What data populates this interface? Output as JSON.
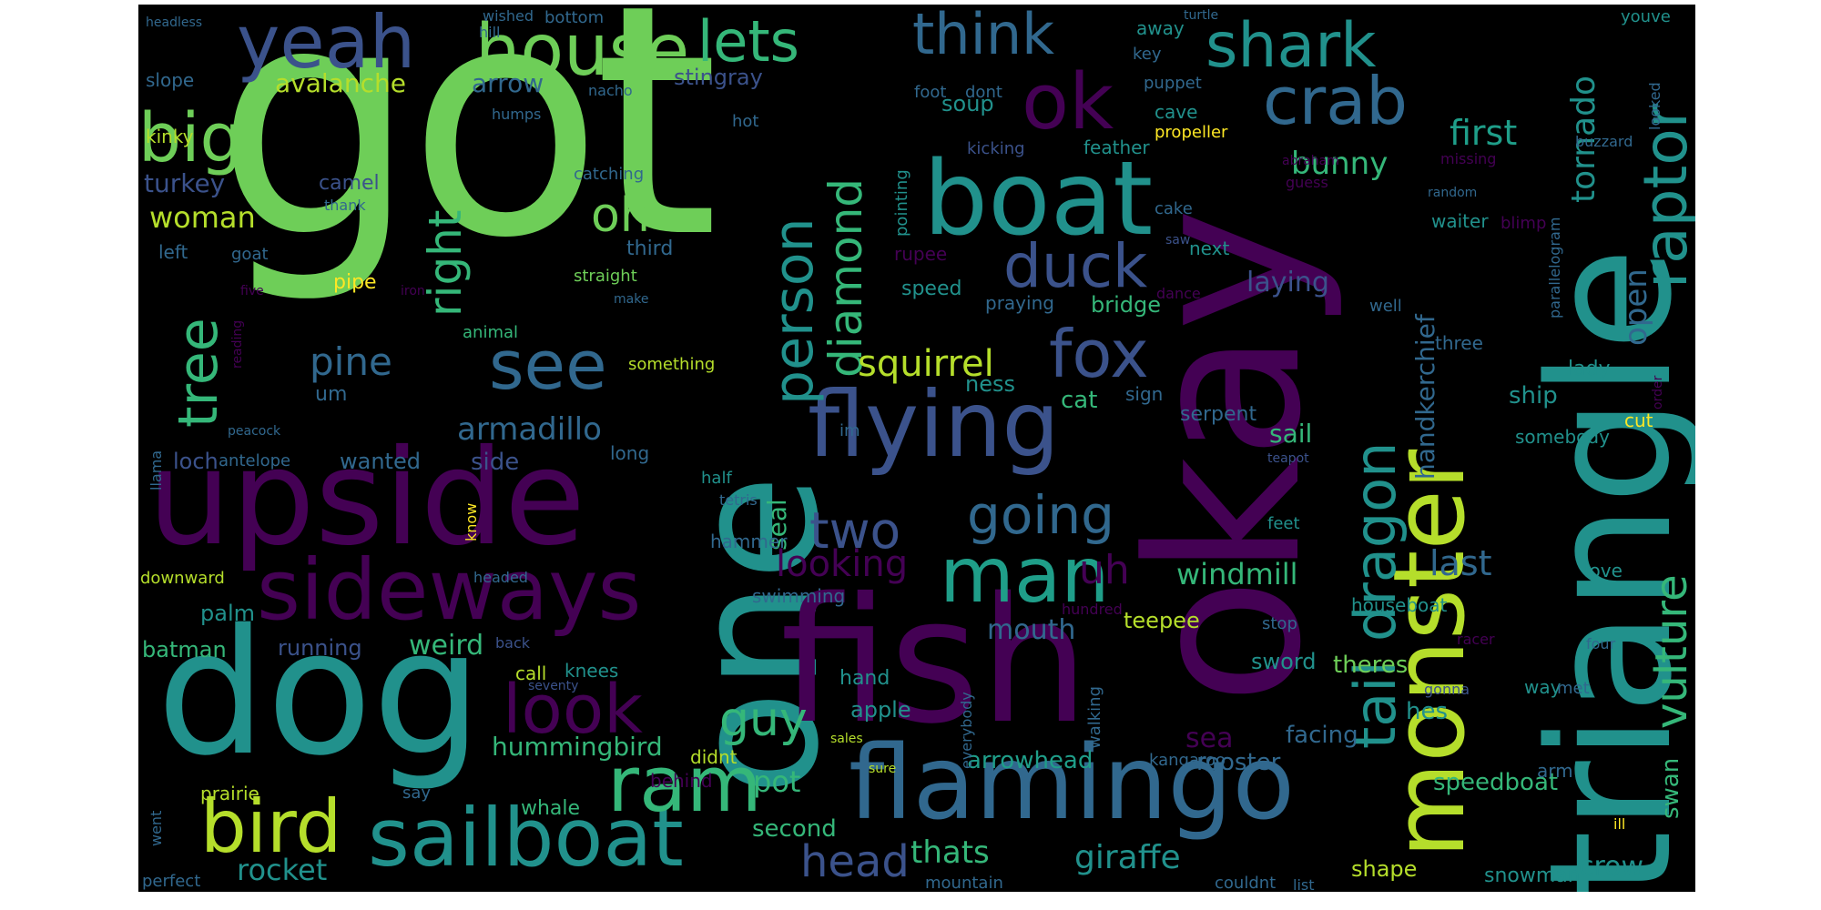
{
  "palette": {
    "purple": "#440154",
    "indigo": "#3b528b",
    "blue": "#31688e",
    "teal": "#21918c",
    "cyan": "#1f9e89",
    "green": "#35b779",
    "lime": "#6ece58",
    "yellow": "#b5de2b",
    "gold": "#fde725"
  },
  "words": [
    {
      "text": "got",
      "c": "lime"
    },
    {
      "text": "okay",
      "c": "purple"
    },
    {
      "text": "triangle",
      "c": "teal"
    },
    {
      "text": "one",
      "c": "teal"
    },
    {
      "text": "fish",
      "c": "purple"
    },
    {
      "text": "dog",
      "c": "teal"
    },
    {
      "text": "upside",
      "c": "purple"
    },
    {
      "text": "flamingo",
      "c": "blue"
    },
    {
      "text": "boat",
      "c": "teal"
    },
    {
      "text": "monster",
      "c": "yellow"
    },
    {
      "text": "flying",
      "c": "indigo"
    },
    {
      "text": "sideways",
      "c": "purple"
    },
    {
      "text": "sailboat",
      "c": "teal"
    },
    {
      "text": "ram",
      "c": "green"
    },
    {
      "text": "man",
      "c": "cyan"
    },
    {
      "text": "bird",
      "c": "yellow"
    },
    {
      "text": "house",
      "c": "lime"
    },
    {
      "text": "yeah",
      "c": "indigo"
    },
    {
      "text": "ok",
      "c": "purple"
    },
    {
      "text": "crab",
      "c": "blue"
    },
    {
      "text": "shark",
      "c": "teal"
    },
    {
      "text": "think",
      "c": "blue"
    },
    {
      "text": "lets",
      "c": "green"
    },
    {
      "text": "raptor",
      "c": "teal"
    },
    {
      "text": "fox",
      "c": "indigo"
    },
    {
      "text": "duck",
      "c": "indigo"
    },
    {
      "text": "see",
      "c": "blue"
    },
    {
      "text": "look",
      "c": "purple"
    },
    {
      "text": "going",
      "c": "blue"
    },
    {
      "text": "two",
      "c": "indigo"
    },
    {
      "text": "big",
      "c": "lime"
    },
    {
      "text": "tree",
      "c": "green"
    },
    {
      "text": "oh",
      "c": "lime"
    },
    {
      "text": "person",
      "c": "teal"
    },
    {
      "text": "diamond",
      "c": "green"
    },
    {
      "text": "right",
      "c": "green"
    },
    {
      "text": "dragon",
      "c": "teal"
    },
    {
      "text": "tail",
      "c": "teal"
    },
    {
      "text": "vulture",
      "c": "green"
    },
    {
      "text": "pine",
      "c": "blue"
    },
    {
      "text": "squirrel",
      "c": "yellow"
    },
    {
      "text": "armadillo",
      "c": "blue"
    },
    {
      "text": "guy",
      "c": "green"
    },
    {
      "text": "head",
      "c": "indigo"
    },
    {
      "text": "looking",
      "c": "purple"
    },
    {
      "text": "uh",
      "c": "purple"
    },
    {
      "text": "windmill",
      "c": "green"
    },
    {
      "text": "last",
      "c": "blue"
    },
    {
      "text": "first",
      "c": "cyan"
    },
    {
      "text": "bunny",
      "c": "green"
    },
    {
      "text": "tornado",
      "c": "teal"
    },
    {
      "text": "handkerchief",
      "c": "blue"
    },
    {
      "text": "open",
      "c": "blue"
    },
    {
      "text": "giraffe",
      "c": "teal"
    },
    {
      "text": "thats",
      "c": "green"
    },
    {
      "text": "rocket",
      "c": "teal"
    },
    {
      "text": "crow",
      "c": "teal"
    },
    {
      "text": "pot",
      "c": "green"
    },
    {
      "text": "sea",
      "c": "purple"
    },
    {
      "text": "seal",
      "c": "green"
    },
    {
      "text": "mouth",
      "c": "blue"
    },
    {
      "text": "hummingbird",
      "c": "green"
    },
    {
      "text": "arrowhead",
      "c": "cyan"
    },
    {
      "text": "rooster",
      "c": "blue"
    },
    {
      "text": "facing",
      "c": "blue"
    },
    {
      "text": "avalanche",
      "c": "yellow"
    },
    {
      "text": "arrow",
      "c": "blue"
    },
    {
      "text": "woman",
      "c": "yellow"
    },
    {
      "text": "turkey",
      "c": "indigo"
    },
    {
      "text": "laying",
      "c": "indigo"
    },
    {
      "text": "weird",
      "c": "green"
    },
    {
      "text": "palm",
      "c": "teal"
    },
    {
      "text": "batman",
      "c": "green"
    },
    {
      "text": "speedboat",
      "c": "green"
    },
    {
      "text": "theres",
      "c": "lime"
    },
    {
      "text": "sword",
      "c": "teal"
    },
    {
      "text": "hes",
      "c": "teal"
    },
    {
      "text": "second",
      "c": "green"
    },
    {
      "text": "swan",
      "c": "green"
    },
    {
      "text": "ship",
      "c": "teal"
    },
    {
      "text": "wanted",
      "c": "blue"
    },
    {
      "text": "loch",
      "c": "indigo"
    },
    {
      "text": "side",
      "c": "indigo"
    },
    {
      "text": "cat",
      "c": "green"
    },
    {
      "text": "ness",
      "c": "teal"
    },
    {
      "text": "soup",
      "c": "teal"
    },
    {
      "text": "stingray",
      "c": "indigo"
    },
    {
      "text": "bridge",
      "c": "green"
    },
    {
      "text": "apple",
      "c": "teal"
    },
    {
      "text": "teepee",
      "c": "yellow"
    },
    {
      "text": "shape",
      "c": "yellow"
    },
    {
      "text": "snowman",
      "c": "teal"
    },
    {
      "text": "whale",
      "c": "green"
    },
    {
      "text": "pipe",
      "c": "gold"
    },
    {
      "text": "camel",
      "c": "indigo"
    },
    {
      "text": "running",
      "c": "indigo"
    },
    {
      "text": "prairie",
      "c": "yellow"
    },
    {
      "text": "lady",
      "c": "teal"
    },
    {
      "text": "kinky",
      "c": "yellow"
    },
    {
      "text": "slope",
      "c": "blue"
    },
    {
      "text": "left",
      "c": "blue"
    },
    {
      "text": "bottom",
      "c": "blue"
    },
    {
      "text": "hill",
      "c": "blue"
    },
    {
      "text": "wished",
      "c": "blue"
    },
    {
      "text": "headless",
      "c": "blue"
    },
    {
      "text": "nacho",
      "c": "blue"
    },
    {
      "text": "humps",
      "c": "blue"
    },
    {
      "text": "hot",
      "c": "blue"
    },
    {
      "text": "catching",
      "c": "blue"
    },
    {
      "text": "thank",
      "c": "blue"
    },
    {
      "text": "third",
      "c": "blue"
    },
    {
      "text": "straight",
      "c": "lime"
    },
    {
      "text": "make",
      "c": "blue"
    },
    {
      "text": "goat",
      "c": "blue"
    },
    {
      "text": "five",
      "c": "purple"
    },
    {
      "text": "iron",
      "c": "purple"
    },
    {
      "text": "reading",
      "c": "purple"
    },
    {
      "text": "um",
      "c": "blue"
    },
    {
      "text": "animal",
      "c": "green"
    },
    {
      "text": "something",
      "c": "yellow"
    },
    {
      "text": "peacock",
      "c": "blue"
    },
    {
      "text": "llama",
      "c": "blue"
    },
    {
      "text": "antelope",
      "c": "blue"
    },
    {
      "text": "long",
      "c": "blue"
    },
    {
      "text": "im",
      "c": "blue"
    },
    {
      "text": "half",
      "c": "teal"
    },
    {
      "text": "tetris",
      "c": "blue"
    },
    {
      "text": "hammer",
      "c": "blue"
    },
    {
      "text": "know",
      "c": "gold"
    },
    {
      "text": "downward",
      "c": "yellow"
    },
    {
      "text": "headed",
      "c": "blue"
    },
    {
      "text": "swimming",
      "c": "blue"
    },
    {
      "text": "call",
      "c": "yellow"
    },
    {
      "text": "knees",
      "c": "teal"
    },
    {
      "text": "back",
      "c": "indigo"
    },
    {
      "text": "seventy",
      "c": "indigo"
    },
    {
      "text": "didnt",
      "c": "yellow"
    },
    {
      "text": "behind",
      "c": "purple"
    },
    {
      "text": "say",
      "c": "blue"
    },
    {
      "text": "went",
      "c": "blue"
    },
    {
      "text": "perfect",
      "c": "blue"
    },
    {
      "text": "mountain",
      "c": "blue"
    },
    {
      "text": "couldnt",
      "c": "blue"
    },
    {
      "text": "list",
      "c": "blue"
    },
    {
      "text": "sales",
      "c": "yellow"
    },
    {
      "text": "sure",
      "c": "yellow"
    },
    {
      "text": "kangaroo",
      "c": "blue"
    },
    {
      "text": "hand",
      "c": "teal"
    },
    {
      "text": "walking",
      "c": "blue"
    },
    {
      "text": "everybody",
      "c": "blue"
    },
    {
      "text": "hundred",
      "c": "purple"
    },
    {
      "text": "stop",
      "c": "blue"
    },
    {
      "text": "racer",
      "c": "purple"
    },
    {
      "text": "gonna",
      "c": "indigo"
    },
    {
      "text": "houseboat",
      "c": "teal"
    },
    {
      "text": "way",
      "c": "teal"
    },
    {
      "text": "met",
      "c": "blue"
    },
    {
      "text": "love",
      "c": "teal"
    },
    {
      "text": "four",
      "c": "blue"
    },
    {
      "text": "arm",
      "c": "blue"
    },
    {
      "text": "ill",
      "c": "gold"
    },
    {
      "text": "serpent",
      "c": "blue"
    },
    {
      "text": "sail",
      "c": "green"
    },
    {
      "text": "teapot",
      "c": "indigo"
    },
    {
      "text": "somebody",
      "c": "teal"
    },
    {
      "text": "cut",
      "c": "gold"
    },
    {
      "text": "order",
      "c": "purple"
    },
    {
      "text": "sign",
      "c": "blue"
    },
    {
      "text": "three",
      "c": "blue"
    },
    {
      "text": "well",
      "c": "blue"
    },
    {
      "text": "dance",
      "c": "purple"
    },
    {
      "text": "praying",
      "c": "blue"
    },
    {
      "text": "speed",
      "c": "teal"
    },
    {
      "text": "rupee",
      "c": "purple"
    },
    {
      "text": "pointing",
      "c": "teal"
    },
    {
      "text": "saw",
      "c": "indigo"
    },
    {
      "text": "next",
      "c": "teal"
    },
    {
      "text": "cake",
      "c": "blue"
    },
    {
      "text": "guess",
      "c": "purple"
    },
    {
      "text": "waiter",
      "c": "teal"
    },
    {
      "text": "blimp",
      "c": "purple"
    },
    {
      "text": "random",
      "c": "blue"
    },
    {
      "text": "missing",
      "c": "purple"
    },
    {
      "text": "abraham",
      "c": "purple"
    },
    {
      "text": "buzzard",
      "c": "blue"
    },
    {
      "text": "parallelogram",
      "c": "blue"
    },
    {
      "text": "looked",
      "c": "blue"
    },
    {
      "text": "youve",
      "c": "teal"
    },
    {
      "text": "turtle",
      "c": "blue"
    },
    {
      "text": "key",
      "c": "blue"
    },
    {
      "text": "puppet",
      "c": "blue"
    },
    {
      "text": "away",
      "c": "teal"
    },
    {
      "text": "cave",
      "c": "teal"
    },
    {
      "text": "propeller",
      "c": "gold"
    },
    {
      "text": "feather",
      "c": "teal"
    },
    {
      "text": "kicking",
      "c": "indigo"
    },
    {
      "text": "foot",
      "c": "blue"
    },
    {
      "text": "dont",
      "c": "blue"
    },
    {
      "text": "feet",
      "c": "teal"
    }
  ]
}
